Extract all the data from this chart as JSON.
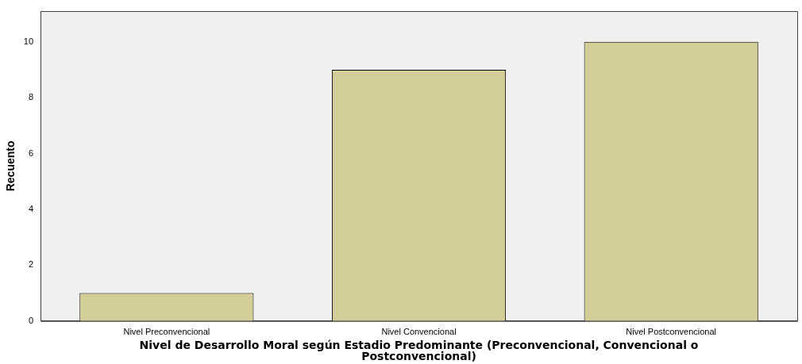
{
  "chart_data": {
    "type": "bar",
    "xlabel": "Nivel de Desarrollo Moral según Estadio Predominante (Preconvencional, Convencional o Postconvencional)",
    "ylabel": "Recuento",
    "categories": [
      "Nivel Preconvencional",
      "Nivel Convencional",
      "Nivel Postconvencional"
    ],
    "values": [
      1,
      9,
      10
    ],
    "color": "#d3ce97",
    "ylim": [
      0,
      11.1
    ],
    "yticks": [
      0,
      2,
      4,
      6,
      8,
      10
    ],
    "grid": false,
    "legend": false
  }
}
